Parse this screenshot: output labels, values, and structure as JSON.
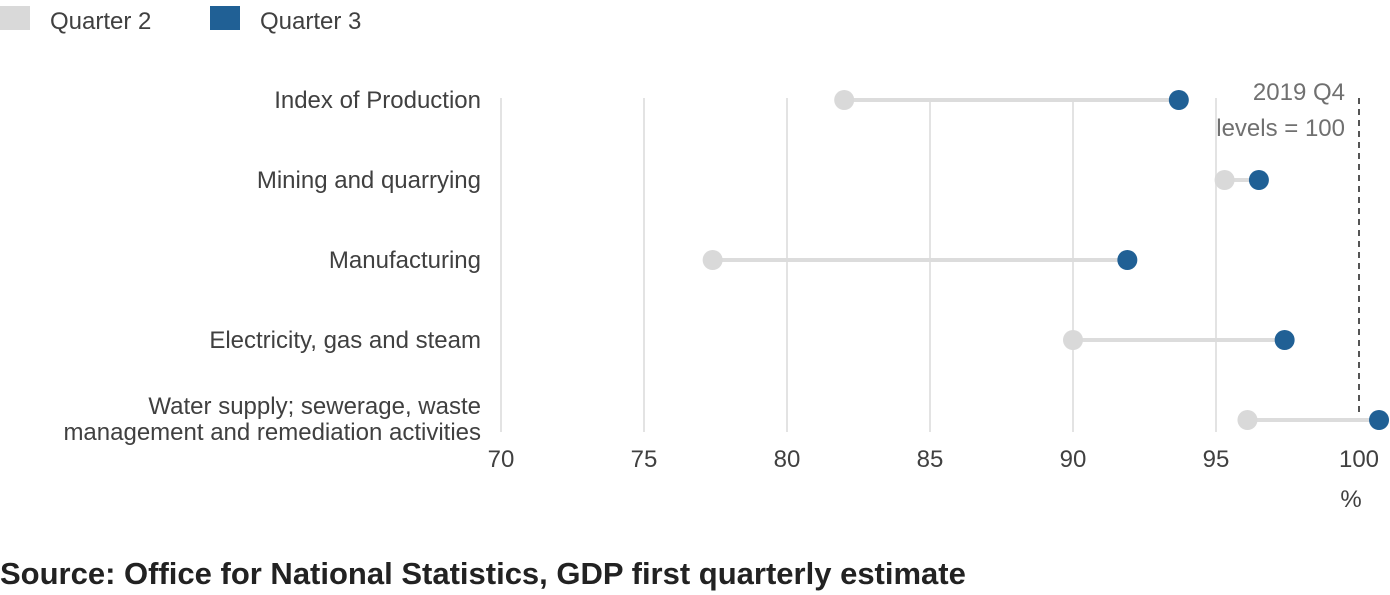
{
  "legend": [
    {
      "label": "Quarter 2",
      "color": "#d9d9d9"
    },
    {
      "label": "Quarter 3",
      "color": "#206095"
    }
  ],
  "chart_data": {
    "type": "dot-plot",
    "categories": [
      [
        "Index of Production"
      ],
      [
        "Mining and quarrying"
      ],
      [
        "Manufacturing"
      ],
      [
        "Electricity, gas and steam"
      ],
      [
        "Water supply; sewerage, waste",
        "management and remediation activities"
      ]
    ],
    "series": [
      {
        "name": "Quarter 2",
        "color": "#d9d9d9",
        "values": [
          82.0,
          95.3,
          77.4,
          90.0,
          96.1
        ]
      },
      {
        "name": "Quarter 3",
        "color": "#206095",
        "values": [
          93.7,
          96.5,
          91.9,
          97.4,
          100.7
        ]
      }
    ],
    "xlim": [
      70,
      100
    ],
    "xticks": [
      70,
      75,
      80,
      85,
      90,
      95,
      100
    ],
    "xunit": "%",
    "grid": true,
    "reference_line": {
      "value": 100,
      "label": [
        "2019 Q4",
        "levels = 100"
      ]
    }
  },
  "source": "Source: Office for National Statistics, GDP first quarterly estimate"
}
